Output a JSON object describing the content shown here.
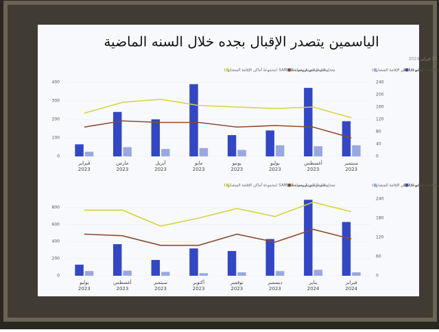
{
  "chart_data": [
    {
      "type": "bar",
      "title": "الياسمين يتصدر الإقبال بجده خلال السنه الماضية",
      "subtitle": "تم آخر تحديث في 17 فبراير 2024",
      "categories": [
        "فبراير",
        "مارس",
        "أبريل",
        "مايو",
        "يونيو",
        "يوليو",
        "أغسطس",
        "سبتمبر"
      ],
      "category_years": [
        "2023",
        "2023",
        "2023",
        "2023",
        "2023",
        "2023",
        "2023",
        "2023"
      ],
      "ylim": [
        0,
        400
      ],
      "yticks": [
        0,
        100,
        200,
        300,
        400
      ],
      "y2lim": [
        0,
        240
      ],
      "y2ticks": [
        0,
        40,
        80,
        120,
        160,
        200,
        240
      ],
      "series": [
        {
          "name": "ليالي الإقامة",
          "kind": "bar",
          "color": "#3347c4",
          "values": [
            65,
            240,
            200,
            390,
            115,
            140,
            370,
            190
          ]
        },
        {
          "name": "ليالي الإقامة (مجموعة أماكن الإقامة المتشابهة)",
          "kind": "bar",
          "color": "#9aa8e0",
          "values": [
            25,
            50,
            40,
            45,
            35,
            60,
            55,
            60
          ]
        },
        {
          "name": "معدل السعر اليومي بعملة SAR",
          "kind": "line",
          "axis": "y2",
          "color": "#8b4a2a",
          "values": [
            95,
            115,
            110,
            110,
            95,
            100,
            95,
            60
          ]
        },
        {
          "name": "معدل السعر اليومي بعملة SAR (مجموعة أماكن الإقامة المتشابهة)",
          "kind": "line",
          "axis": "y2",
          "color": "#d4d43c",
          "values": [
            140,
            175,
            185,
            165,
            160,
            155,
            160,
            125
          ]
        }
      ]
    },
    {
      "type": "bar",
      "categories": [
        "يوليو",
        "أغسطس",
        "سبتمبر",
        "أكتوبر",
        "نوفمبر",
        "ديسمبر",
        "يناير",
        "فبراير"
      ],
      "category_years": [
        "2023",
        "2023",
        "2023",
        "2023",
        "2023",
        "2023",
        "2024",
        "2024"
      ],
      "ylim": [
        0,
        900
      ],
      "yticks": [
        0,
        200,
        400,
        600,
        800
      ],
      "y2lim": [
        0,
        240
      ],
      "y2ticks": [
        0,
        60,
        120,
        180,
        240
      ],
      "series": [
        {
          "name": "ليالي الإقامة",
          "kind": "bar",
          "color": "#3347c4",
          "values": [
            130,
            370,
            185,
            320,
            290,
            430,
            890,
            630
          ]
        },
        {
          "name": "ليالي الإقامة (مجموعة أماكن الإقامة المتشابهة)",
          "kind": "bar",
          "color": "#9aa8e0",
          "values": [
            55,
            60,
            45,
            30,
            40,
            55,
            70,
            40
          ]
        },
        {
          "name": "معدل السعر اليومي بعملة SAR",
          "kind": "line",
          "axis": "y2",
          "color": "#8b4a2a",
          "values": [
            130,
            125,
            95,
            95,
            130,
            105,
            145,
            115
          ]
        },
        {
          "name": "معدل السعر اليومي بعملة SAR (مجموعة أماكن الإقامة المتشابهة)",
          "kind": "line",
          "axis": "y2",
          "color": "#d4d43c",
          "values": [
            205,
            205,
            155,
            180,
            210,
            185,
            230,
            200
          ]
        }
      ]
    }
  ]
}
